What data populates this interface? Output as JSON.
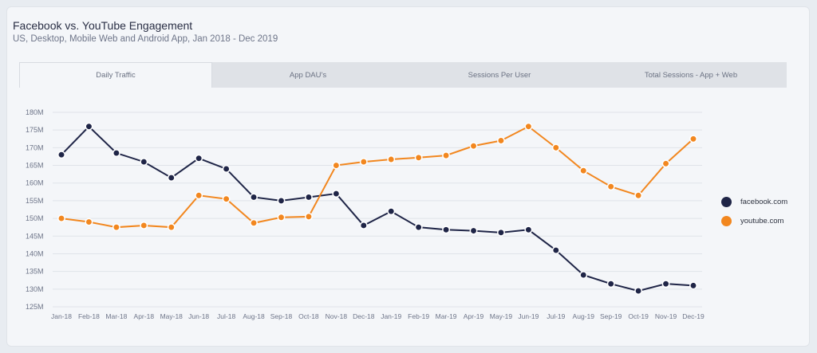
{
  "title": "Facebook vs. YouTube Engagement",
  "subtitle": "US, Desktop, Mobile Web and Android App, Jan 2018 - Dec 2019",
  "tabs": [
    {
      "label": "Daily Traffic",
      "active": true
    },
    {
      "label": "App DAU's",
      "active": false
    },
    {
      "label": "Sessions Per User",
      "active": false
    },
    {
      "label": "Total Sessions - App + Web",
      "active": false
    }
  ],
  "colors": {
    "facebook": "#1f2547",
    "youtube": "#f2871f"
  },
  "chart_data": {
    "type": "line",
    "x": [
      "Jan-18",
      "Feb-18",
      "Mar-18",
      "Apr-18",
      "May-18",
      "Jun-18",
      "Jul-18",
      "Aug-18",
      "Sep-18",
      "Oct-18",
      "Nov-18",
      "Dec-18",
      "Jan-19",
      "Feb-19",
      "Mar-19",
      "Apr-19",
      "May-19",
      "Jun-19",
      "Jul-19",
      "Aug-19",
      "Sep-19",
      "Oct-19",
      "Nov-19",
      "Dec-19"
    ],
    "y_ticks": [
      "125M",
      "130M",
      "135M",
      "140M",
      "145M",
      "150M",
      "155M",
      "160M",
      "165M",
      "170M",
      "175M",
      "180M"
    ],
    "ylim": [
      125,
      180
    ],
    "grid": true,
    "legend": "right",
    "series": [
      {
        "name": "facebook.com",
        "color": "#1f2547",
        "values": [
          168,
          176,
          168.5,
          166,
          161.5,
          167,
          164,
          156,
          155,
          156,
          157,
          148,
          152,
          147.5,
          146.8,
          146.5,
          146,
          146.8,
          141,
          134,
          131.5,
          129.5,
          131.5,
          131
        ]
      },
      {
        "name": "youtube.com",
        "color": "#f2871f",
        "values": [
          150,
          149,
          147.5,
          148,
          147.5,
          156.5,
          155.5,
          148.7,
          150.3,
          150.5,
          165,
          166,
          166.7,
          167.2,
          167.8,
          170.5,
          172,
          176,
          170,
          163.5,
          159,
          156.5,
          165.5,
          172.5
        ]
      }
    ]
  }
}
